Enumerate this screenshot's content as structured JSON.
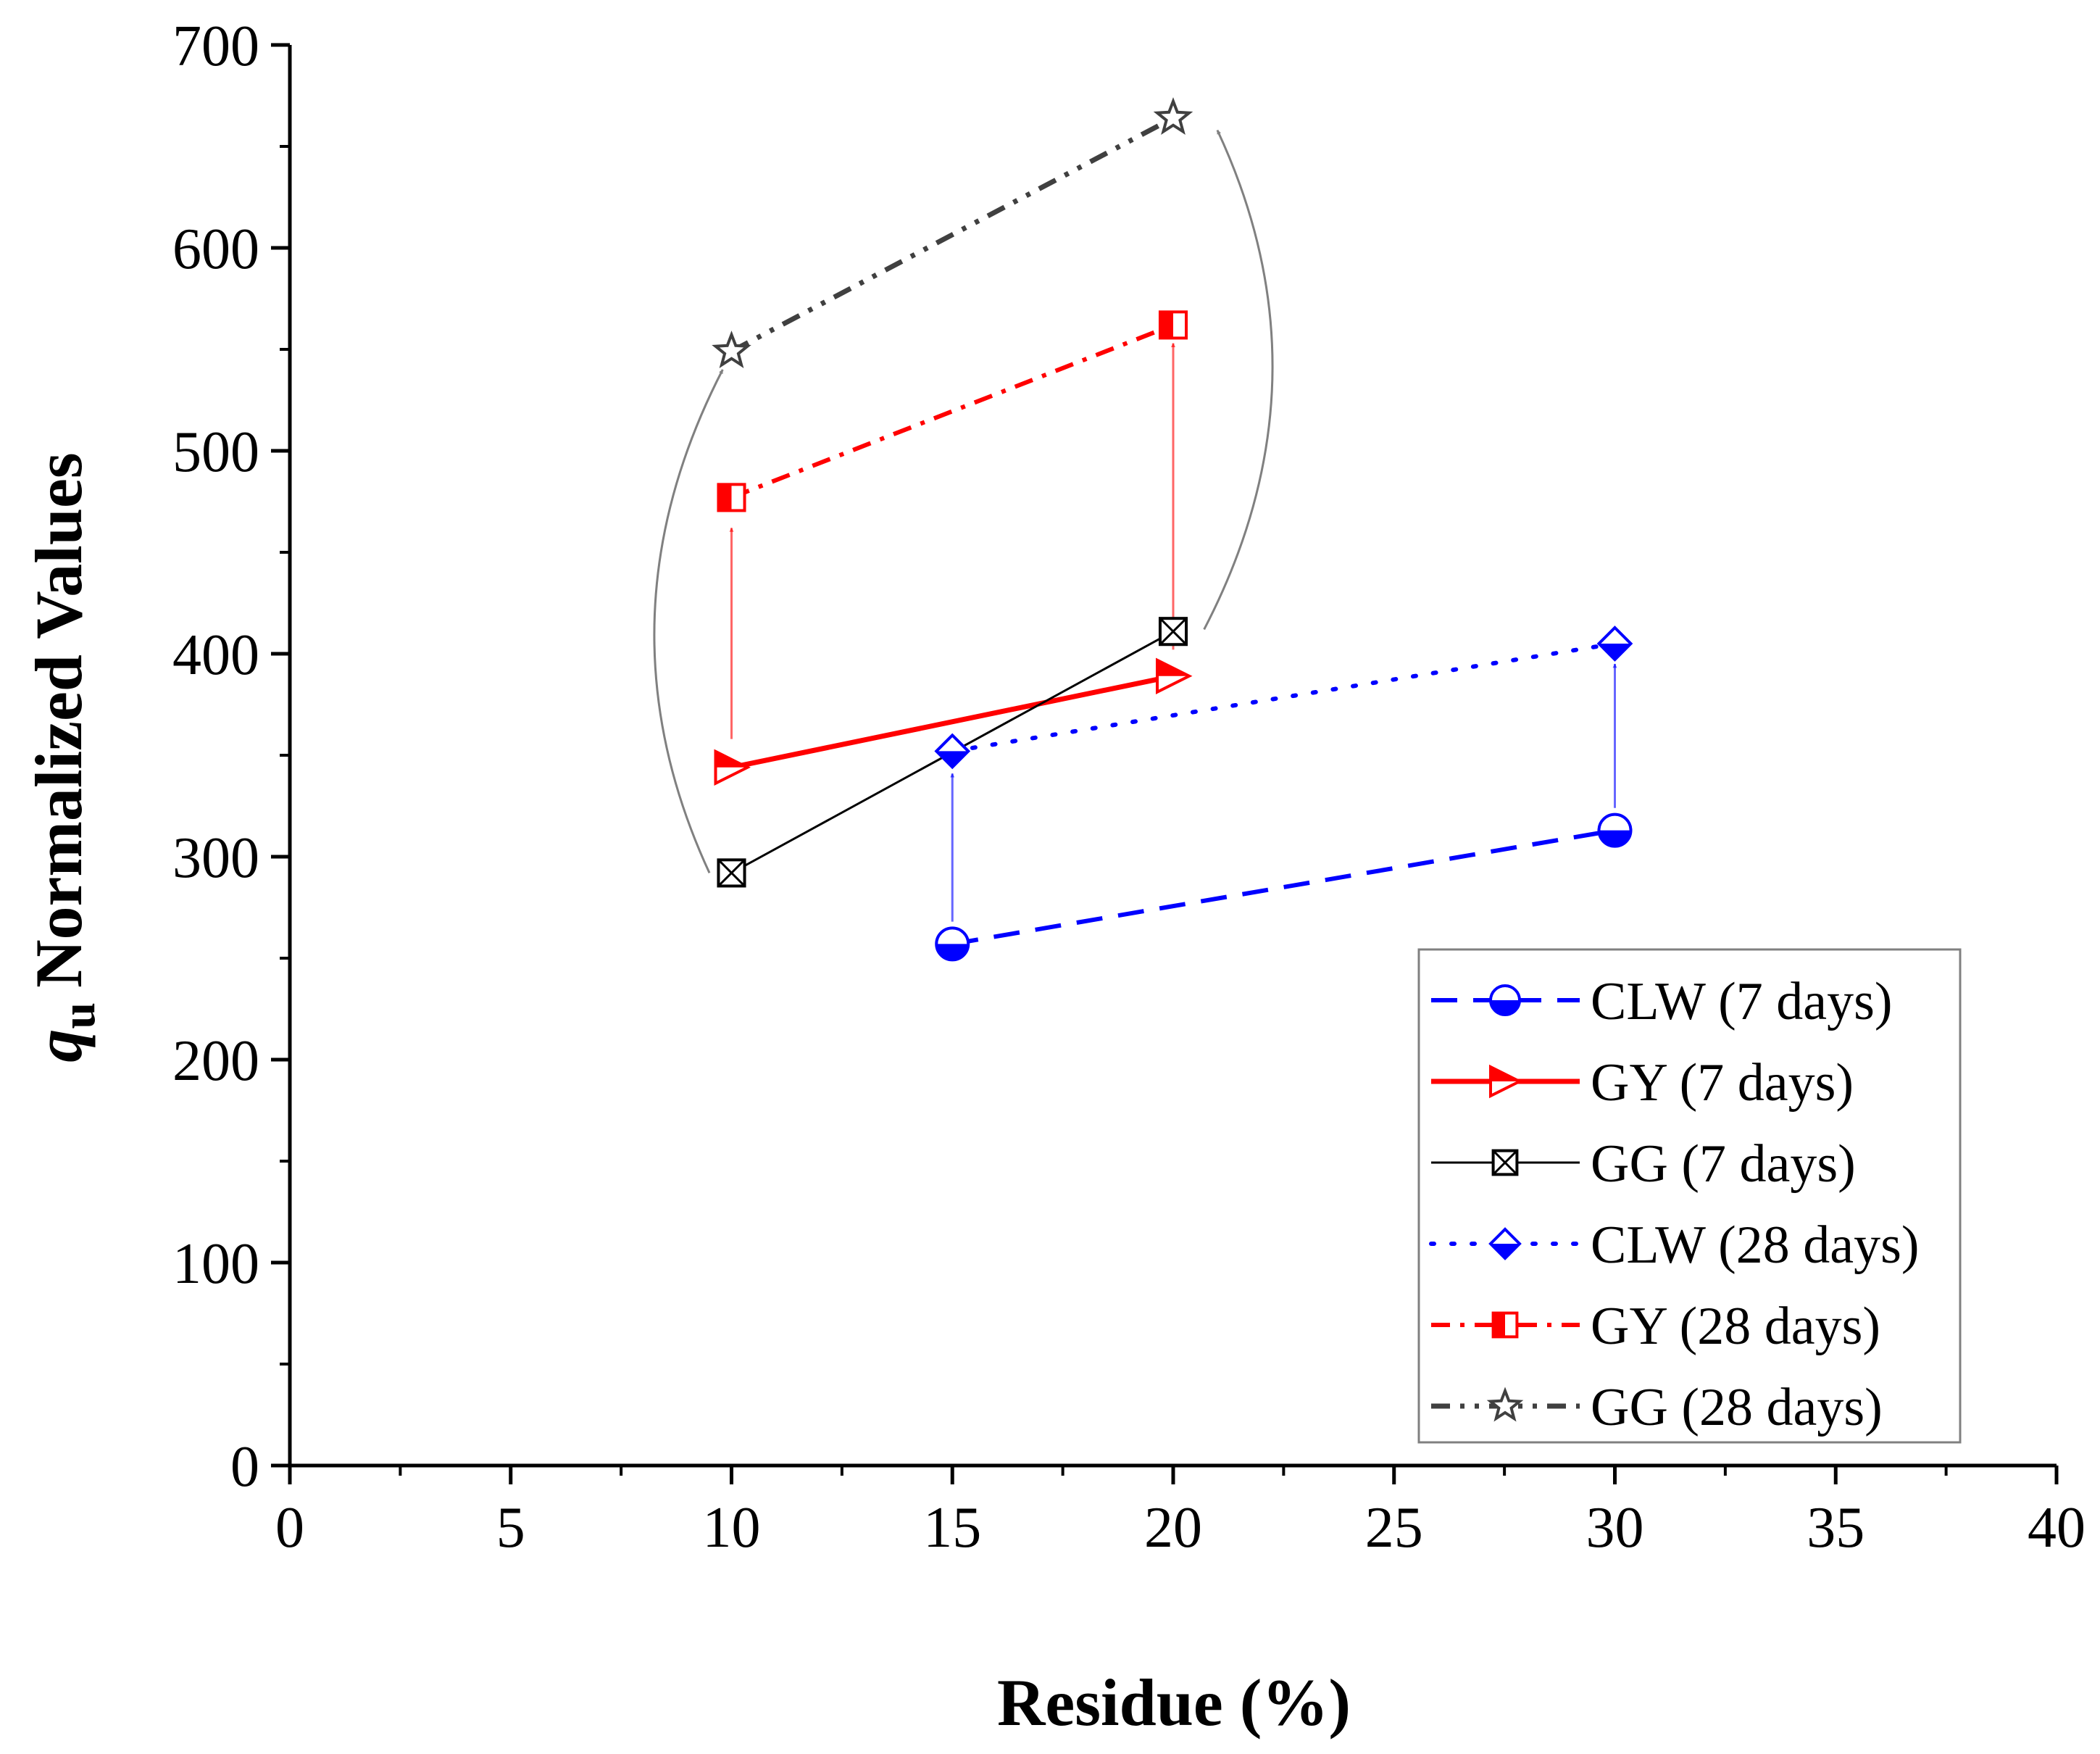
{
  "chart_data": {
    "type": "line",
    "title": "",
    "xlabel": "Residue (%)",
    "ylabel_symbol": "q",
    "ylabel_subscript": "u",
    "ylabel": "Normalized Values",
    "xlim": [
      0,
      40
    ],
    "ylim": [
      0,
      700
    ],
    "xticks": [
      0,
      5,
      10,
      15,
      20,
      25,
      30,
      35,
      40
    ],
    "yticks": [
      0,
      100,
      200,
      300,
      400,
      500,
      600,
      700
    ],
    "x_minor_step": 2.5,
    "y_minor_step": 50,
    "grid": false,
    "legend_position": "bottom-right",
    "series": [
      {
        "name": "CLW (7 days)",
        "key": "clw7",
        "x": [
          15,
          30
        ],
        "y": [
          257,
          313
        ],
        "color": "#0000ff",
        "line": "dash",
        "marker": "half-circle"
      },
      {
        "name": "GY (7 days)",
        "key": "gy7",
        "x": [
          10,
          20
        ],
        "y": [
          344,
          389
        ],
        "color": "#ff0000",
        "line": "solid",
        "marker": "half-triangle-right"
      },
      {
        "name": "GG (7 days)",
        "key": "gg7",
        "x": [
          10,
          20
        ],
        "y": [
          292,
          411
        ],
        "color": "#000000",
        "line": "thin",
        "marker": "crossed-square"
      },
      {
        "name": "CLW (28 days)",
        "key": "clw28",
        "x": [
          15,
          30
        ],
        "y": [
          352,
          405
        ],
        "color": "#0000ff",
        "line": "dot",
        "marker": "half-diamond"
      },
      {
        "name": "GY (28 days)",
        "key": "gy28",
        "x": [
          10,
          20
        ],
        "y": [
          477,
          562
        ],
        "color": "#ff0000",
        "line": "dashdot",
        "marker": "half-square"
      },
      {
        "name": "GG (28 days)",
        "key": "gg28",
        "x": [
          10,
          20
        ],
        "y": [
          549,
          664
        ],
        "color": "#404040",
        "line": "dashdotdot",
        "marker": "star"
      }
    ],
    "annotations": [
      {
        "type": "arrow",
        "from": [
          10,
          358
        ],
        "to": [
          10,
          462
        ],
        "color": "#ff0000"
      },
      {
        "type": "arrow",
        "from": [
          20,
          402
        ],
        "to": [
          20,
          553
        ],
        "color": "#ff0000"
      },
      {
        "type": "arrow",
        "from": [
          15,
          268
        ],
        "to": [
          15,
          341
        ],
        "color": "#0000ff"
      },
      {
        "type": "arrow",
        "from": [
          30,
          324
        ],
        "to": [
          30,
          395
        ],
        "color": "#0000ff"
      },
      {
        "type": "curved-arrow",
        "from": [
          9.5,
          292
        ],
        "to": [
          9.8,
          540
        ],
        "color": "#808080"
      },
      {
        "type": "curved-arrow",
        "from": [
          20.7,
          412
        ],
        "to": [
          21,
          658
        ],
        "color": "#808080"
      }
    ]
  }
}
